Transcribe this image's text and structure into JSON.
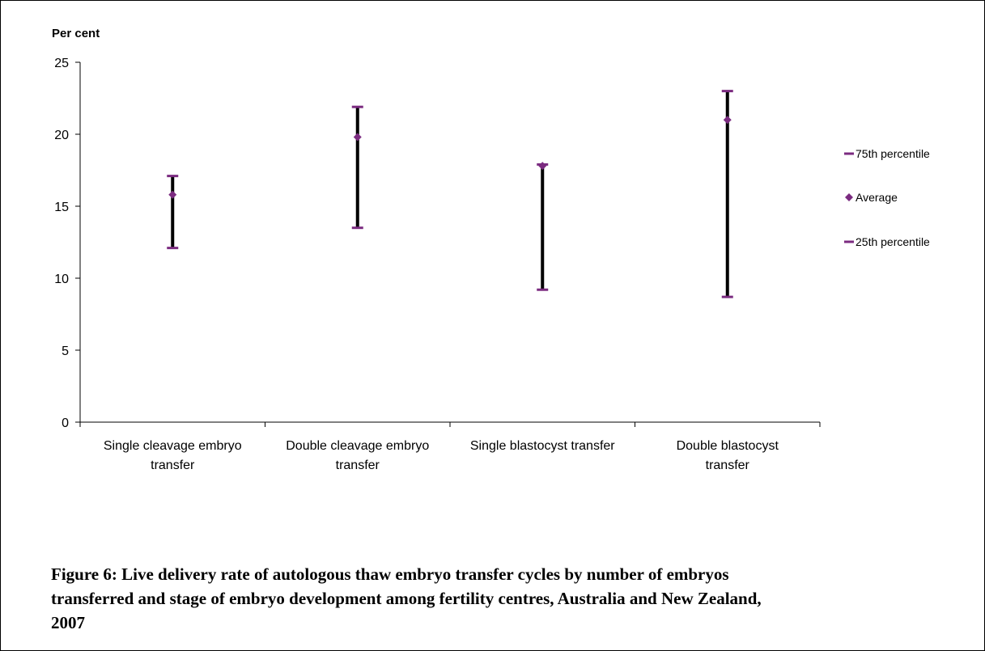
{
  "chart_data": {
    "type": "range",
    "ylabel": "Per cent",
    "ylim": [
      0,
      25
    ],
    "yticks": [
      "0",
      "5",
      "10",
      "15",
      "20",
      "25"
    ],
    "categories": [
      [
        "Single cleavage embryo",
        "transfer"
      ],
      [
        "Double cleavage embryo",
        "transfer"
      ],
      [
        "Single blastocyst transfer"
      ],
      [
        "Double blastocyst",
        "transfer"
      ]
    ],
    "series": [
      {
        "name": "75th percentile",
        "values": [
          17.1,
          21.9,
          17.9,
          23.0
        ]
      },
      {
        "name": "Average",
        "values": [
          15.8,
          19.8,
          17.8,
          21.0
        ]
      },
      {
        "name": "25th percentile",
        "values": [
          12.1,
          13.5,
          9.2,
          8.7
        ]
      }
    ],
    "legend_position": "right",
    "colors": {
      "marker": "#7B2B80",
      "bar": "#000000"
    }
  },
  "caption": "Figure 6: Live delivery rate of autologous thaw embryo transfer cycles by number of embryos transferred and stage of embryo development among fertility centres, Australia and New Zealand, 2007"
}
